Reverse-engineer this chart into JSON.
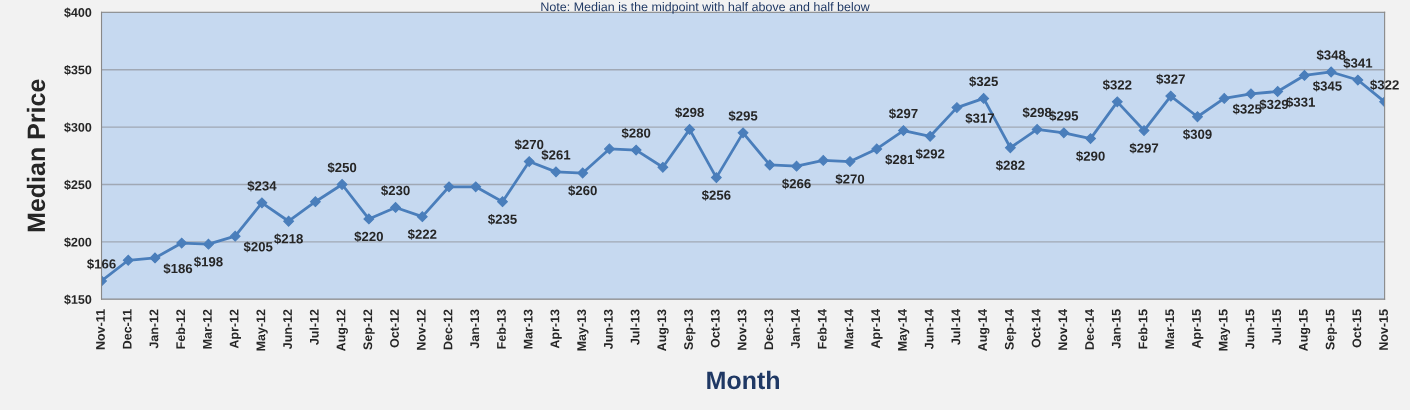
{
  "chart_data": {
    "type": "line",
    "categories": [
      "Nov-11",
      "Dec-11",
      "Jan-12",
      "Feb-12",
      "Mar-12",
      "Apr-12",
      "May-12",
      "Jun-12",
      "Jul-12",
      "Aug-12",
      "Sep-12",
      "Oct-12",
      "Nov-12",
      "Dec-12",
      "Jan-13",
      "Feb-13",
      "Mar-13",
      "Apr-13",
      "May-13",
      "Jun-13",
      "Jul-13",
      "Aug-13",
      "Sep-13",
      "Oct-13",
      "Nov-13",
      "Dec-13",
      "Jan-14",
      "Feb-14",
      "Mar-14",
      "Apr-14",
      "May-14",
      "Jun-14",
      "Jul-14",
      "Aug-14",
      "Sep-14",
      "Oct-14",
      "Nov-14",
      "Dec-14",
      "Jan-15",
      "Feb-15",
      "Mar-15",
      "Apr-15",
      "May-15",
      "Jun-15",
      "Jul-15",
      "Aug-15",
      "Sep-15",
      "Oct-15",
      "Nov-15"
    ],
    "series": [
      {
        "color": "#4a7ebb",
        "values": [
          166,
          184,
          186,
          199,
          198,
          205,
          234,
          218,
          235,
          250,
          220,
          230,
          222,
          248,
          248,
          235,
          270,
          261,
          260,
          281,
          280,
          265,
          298,
          256,
          295,
          267,
          266,
          271,
          270,
          281,
          297,
          292,
          317,
          325,
          282,
          298,
          295,
          290,
          322,
          297,
          327,
          309,
          325,
          329,
          331,
          345,
          348,
          341,
          322
        ],
        "value_labels": [
          "$166",
          null,
          "$186",
          null,
          "$198",
          "$205",
          "$234",
          "$218",
          null,
          "$250",
          "$220",
          "$230",
          "$222",
          null,
          null,
          "$235",
          "$270",
          "$261",
          "$260",
          null,
          "$280",
          null,
          "$298",
          "$256",
          "$295",
          null,
          "$266",
          null,
          "$270",
          "$281",
          "$297",
          "$292",
          "$317",
          "$325",
          "$282",
          "$298",
          "$295",
          "$290",
          "$322",
          "$297",
          "$327",
          "$309",
          "$325",
          "$329",
          "$331",
          "$345",
          "$348",
          "$341",
          "$322"
        ]
      }
    ],
    "xlabel": "Month",
    "ylabel": "Median Price",
    "annotations": [
      "Note: Median is the midpoint with half above and half below"
    ],
    "ylim": [
      150,
      400
    ],
    "yticks": [
      {
        "value": 150,
        "label": "$150"
      },
      {
        "value": 200,
        "label": "$200"
      },
      {
        "value": 250,
        "label": "$250"
      },
      {
        "value": 300,
        "label": "$300"
      },
      {
        "value": 350,
        "label": "$350"
      },
      {
        "value": 400,
        "label": "$400"
      }
    ],
    "grid": "y",
    "marker": "diamond",
    "line_style": "solid",
    "legend": false
  }
}
